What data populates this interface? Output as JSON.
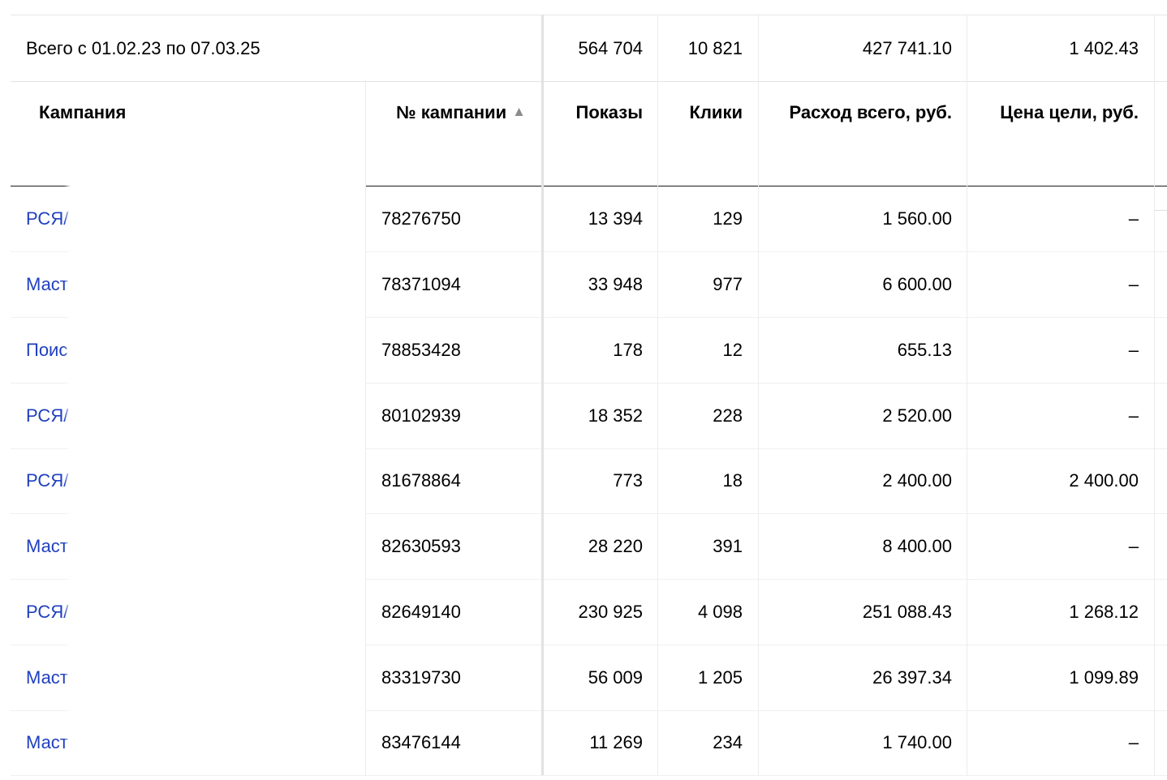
{
  "totals": {
    "label": "Всего с 01.02.23 по 07.03.25",
    "shows": "564 704",
    "clicks": "10 821",
    "cost": "427 741.10",
    "goal_price": "1 402.43"
  },
  "columns": {
    "campaign": "Кампания",
    "campaign_number": "№ кампании",
    "sort_indicator": "▲",
    "shows": "Показы",
    "clicks": "Клики",
    "cost": "Расход всего, руб.",
    "goal_price": "Цена цели, руб."
  },
  "rows": [
    {
      "name": "РСЯ/",
      "number": "78276750",
      "shows": "13 394",
      "clicks": "129",
      "cost": "1 560.00",
      "goal_price": "–"
    },
    {
      "name": "Маст",
      "number": "78371094",
      "shows": "33 948",
      "clicks": "977",
      "cost": "6 600.00",
      "goal_price": "–"
    },
    {
      "name": "Поис",
      "number": "78853428",
      "shows": "178",
      "clicks": "12",
      "cost": "655.13",
      "goal_price": "–"
    },
    {
      "name": "РСЯ/",
      "number": "80102939",
      "shows": "18 352",
      "clicks": "228",
      "cost": "2 520.00",
      "goal_price": "–"
    },
    {
      "name": "РСЯ/",
      "number": "81678864",
      "shows": "773",
      "clicks": "18",
      "cost": "2 400.00",
      "goal_price": "2 400.00"
    },
    {
      "name": "Маст",
      "number": "82630593",
      "shows": "28 220",
      "clicks": "391",
      "cost": "8 400.00",
      "goal_price": "–"
    },
    {
      "name": "РСЯ/",
      "number": "82649140",
      "shows": "230 925",
      "clicks": "4 098",
      "cost": "251 088.43",
      "goal_price": "1 268.12"
    },
    {
      "name": "Маст",
      "number": "83319730",
      "shows": "56 009",
      "clicks": "1 205",
      "cost": "26 397.34",
      "goal_price": "1 099.89"
    },
    {
      "name": "Маст",
      "number": "83476144",
      "shows": "11 269",
      "clicks": "234",
      "cost": "1 740.00",
      "goal_price": "–"
    }
  ],
  "colors": {
    "link": "#1f3fbf",
    "header_rule": "#1a1a1a",
    "separator": "#ececec",
    "sort_arrow": "#8c8c8c"
  }
}
